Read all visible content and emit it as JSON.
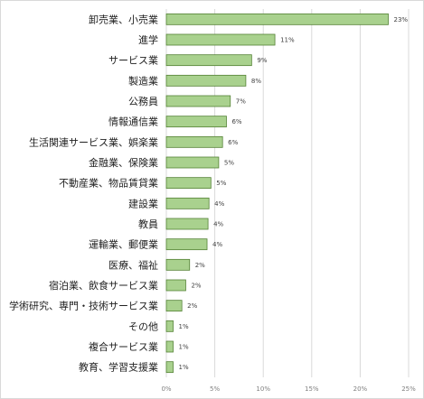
{
  "chart_data": {
    "type": "bar",
    "orientation": "horizontal",
    "categories": [
      "卸売業、小売業",
      "進学",
      "サービス業",
      "製造業",
      "公務員",
      "情報通信業",
      "生活関連サービス業、娯楽業",
      "金融業、保険業",
      "不動産業、物品賃貸業",
      "建設業",
      "教員",
      "運輸業、郵便業",
      "医療、福祉",
      "宿泊業、飲食サービス業",
      "学術研究、専門・技術サービス業",
      "その他",
      "複合サービス業",
      "教育、学習支援業"
    ],
    "values": [
      22.9,
      11.2,
      8.8,
      8.2,
      6.6,
      6.2,
      5.8,
      5.4,
      4.6,
      4.4,
      4.3,
      4.2,
      2.4,
      2.0,
      1.6,
      0.7,
      0.7,
      0.7
    ],
    "value_labels": [
      "23%",
      "11%",
      "9%",
      "8%",
      "7%",
      "6%",
      "6%",
      "5%",
      "5%",
      "4%",
      "4%",
      "4%",
      "2%",
      "2%",
      "2%",
      "1%",
      "1%",
      "1%"
    ],
    "x_ticks": [
      "0%",
      "5%",
      "10%",
      "15%",
      "20%",
      "25%"
    ],
    "xlim": [
      0,
      25
    ],
    "grid": true,
    "colors": {
      "bar_fill": "#a9d18e",
      "bar_stroke": "#548235",
      "grid": "#d9d9d9"
    }
  }
}
